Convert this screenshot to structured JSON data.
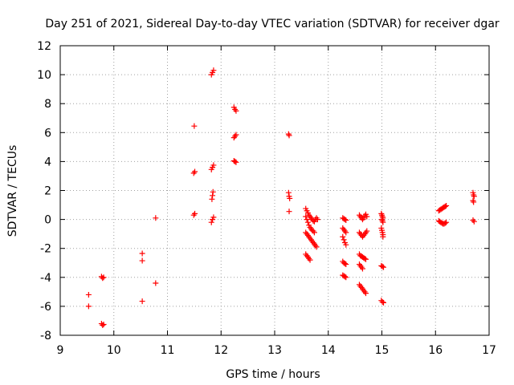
{
  "chart_data": {
    "type": "scatter",
    "title": "Day 251 of 2021, Sidereal Day-to-day VTEC variation (SDTVAR) for receiver dgar",
    "xlabel": "GPS time / hours",
    "ylabel": "SDTVAR / TECUs",
    "xlim": [
      9,
      17
    ],
    "ylim": [
      -8,
      12
    ],
    "xticks": [
      "9",
      "10",
      "11",
      "12",
      "13",
      "14",
      "15",
      "16",
      "17"
    ],
    "yticks": [
      "-8",
      "-6",
      "-4",
      "-2",
      "0",
      "2",
      "4",
      "6",
      "8",
      "10",
      "12"
    ],
    "grid": true,
    "marker": "+",
    "marker_color": "#ff0000",
    "series": [
      {
        "name": "SDTVAR",
        "points": [
          [
            9.53,
            -5.2
          ],
          [
            9.53,
            -6.0
          ],
          [
            9.77,
            -3.95
          ],
          [
            9.79,
            -4.05
          ],
          [
            9.81,
            -4.0
          ],
          [
            9.77,
            -7.2
          ],
          [
            9.79,
            -7.3
          ],
          [
            9.81,
            -7.25
          ],
          [
            10.53,
            -2.35
          ],
          [
            10.53,
            -2.85
          ],
          [
            10.53,
            -5.65
          ],
          [
            10.78,
            0.1
          ],
          [
            10.78,
            -4.4
          ],
          [
            11.5,
            6.45
          ],
          [
            11.49,
            3.2
          ],
          [
            11.51,
            3.3
          ],
          [
            11.49,
            0.3
          ],
          [
            11.51,
            0.4
          ],
          [
            11.82,
            10.0
          ],
          [
            11.84,
            10.15
          ],
          [
            11.86,
            10.3
          ],
          [
            11.82,
            3.45
          ],
          [
            11.84,
            3.6
          ],
          [
            11.86,
            3.75
          ],
          [
            11.83,
            1.4
          ],
          [
            11.84,
            1.65
          ],
          [
            11.85,
            1.9
          ],
          [
            11.82,
            -0.2
          ],
          [
            11.84,
            0.0
          ],
          [
            11.86,
            0.15
          ],
          [
            12.24,
            7.75
          ],
          [
            12.26,
            7.6
          ],
          [
            12.28,
            7.5
          ],
          [
            12.24,
            5.65
          ],
          [
            12.26,
            5.75
          ],
          [
            12.28,
            5.85
          ],
          [
            12.24,
            4.05
          ],
          [
            12.26,
            4.0
          ],
          [
            12.28,
            3.95
          ],
          [
            13.26,
            5.9
          ],
          [
            13.27,
            5.8
          ],
          [
            13.26,
            1.85
          ],
          [
            13.27,
            1.6
          ],
          [
            13.28,
            1.45
          ],
          [
            13.27,
            0.55
          ],
          [
            13.58,
            0.75
          ],
          [
            13.6,
            0.6
          ],
          [
            13.62,
            0.45
          ],
          [
            13.64,
            0.3
          ],
          [
            13.66,
            0.2
          ],
          [
            13.68,
            0.1
          ],
          [
            13.7,
            0.0
          ],
          [
            13.72,
            -0.1
          ],
          [
            13.74,
            -0.15
          ],
          [
            13.76,
            0.0
          ],
          [
            13.78,
            0.1
          ],
          [
            13.8,
            0.0
          ],
          [
            13.58,
            0.2
          ],
          [
            13.6,
            0.0
          ],
          [
            13.62,
            -0.2
          ],
          [
            13.64,
            -0.4
          ],
          [
            13.66,
            -0.55
          ],
          [
            13.68,
            -0.65
          ],
          [
            13.7,
            -0.75
          ],
          [
            13.72,
            -0.8
          ],
          [
            13.74,
            -0.9
          ],
          [
            13.58,
            -0.9
          ],
          [
            13.6,
            -1.0
          ],
          [
            13.62,
            -1.1
          ],
          [
            13.64,
            -1.2
          ],
          [
            13.66,
            -1.3
          ],
          [
            13.68,
            -1.4
          ],
          [
            13.7,
            -1.5
          ],
          [
            13.72,
            -1.6
          ],
          [
            13.74,
            -1.7
          ],
          [
            13.76,
            -1.8
          ],
          [
            13.78,
            -1.9
          ],
          [
            13.58,
            -2.4
          ],
          [
            13.6,
            -2.5
          ],
          [
            13.62,
            -2.6
          ],
          [
            13.64,
            -2.7
          ],
          [
            13.66,
            -2.8
          ],
          [
            14.27,
            0.1
          ],
          [
            14.29,
            0.05
          ],
          [
            14.31,
            0.0
          ],
          [
            14.33,
            -0.05
          ],
          [
            14.27,
            -0.6
          ],
          [
            14.29,
            -0.7
          ],
          [
            14.31,
            -0.8
          ],
          [
            14.33,
            -0.9
          ],
          [
            14.27,
            -1.2
          ],
          [
            14.29,
            -1.4
          ],
          [
            14.31,
            -1.6
          ],
          [
            14.33,
            -1.75
          ],
          [
            14.27,
            -2.9
          ],
          [
            14.29,
            -3.0
          ],
          [
            14.31,
            -3.05
          ],
          [
            14.33,
            -3.1
          ],
          [
            14.27,
            -3.85
          ],
          [
            14.29,
            -3.9
          ],
          [
            14.31,
            -3.95
          ],
          [
            14.33,
            -4.0
          ],
          [
            14.58,
            0.3
          ],
          [
            14.6,
            0.2
          ],
          [
            14.62,
            0.1
          ],
          [
            14.64,
            0.0
          ],
          [
            14.66,
            0.1
          ],
          [
            14.68,
            0.25
          ],
          [
            14.7,
            0.35
          ],
          [
            14.72,
            0.2
          ],
          [
            14.58,
            -0.9
          ],
          [
            14.6,
            -1.0
          ],
          [
            14.62,
            -1.1
          ],
          [
            14.64,
            -1.2
          ],
          [
            14.66,
            -1.1
          ],
          [
            14.68,
            -1.0
          ],
          [
            14.7,
            -0.9
          ],
          [
            14.72,
            -0.8
          ],
          [
            14.58,
            -2.4
          ],
          [
            14.6,
            -2.5
          ],
          [
            14.62,
            -2.55
          ],
          [
            14.64,
            -2.6
          ],
          [
            14.66,
            -2.65
          ],
          [
            14.68,
            -2.7
          ],
          [
            14.7,
            -2.75
          ],
          [
            14.58,
            -3.1
          ],
          [
            14.6,
            -3.2
          ],
          [
            14.62,
            -3.3
          ],
          [
            14.64,
            -3.4
          ],
          [
            14.58,
            -4.5
          ],
          [
            14.6,
            -4.6
          ],
          [
            14.62,
            -4.7
          ],
          [
            14.64,
            -4.8
          ],
          [
            14.66,
            -4.9
          ],
          [
            14.68,
            -5.0
          ],
          [
            14.7,
            -5.1
          ],
          [
            14.99,
            0.4
          ],
          [
            15.0,
            0.3
          ],
          [
            15.01,
            0.2
          ],
          [
            15.02,
            0.1
          ],
          [
            15.0,
            0.0
          ],
          [
            15.01,
            -0.1
          ],
          [
            15.02,
            -0.2
          ],
          [
            14.99,
            -0.6
          ],
          [
            15.0,
            -0.75
          ],
          [
            15.01,
            -0.9
          ],
          [
            15.02,
            -1.05
          ],
          [
            15.02,
            -1.2
          ],
          [
            14.99,
            -3.2
          ],
          [
            15.01,
            -3.25
          ],
          [
            15.03,
            -3.3
          ],
          [
            14.99,
            -5.6
          ],
          [
            15.01,
            -5.7
          ],
          [
            15.03,
            -5.75
          ],
          [
            16.06,
            0.6
          ],
          [
            16.08,
            0.65
          ],
          [
            16.1,
            0.7
          ],
          [
            16.12,
            0.75
          ],
          [
            16.14,
            0.8
          ],
          [
            16.16,
            0.85
          ],
          [
            16.18,
            0.9
          ],
          [
            16.2,
            0.95
          ],
          [
            16.06,
            -0.1
          ],
          [
            16.08,
            -0.15
          ],
          [
            16.1,
            -0.2
          ],
          [
            16.12,
            -0.25
          ],
          [
            16.14,
            -0.3
          ],
          [
            16.16,
            -0.3
          ],
          [
            16.18,
            -0.25
          ],
          [
            16.2,
            -0.2
          ],
          [
            16.7,
            1.85
          ],
          [
            16.71,
            1.7
          ],
          [
            16.72,
            1.6
          ],
          [
            16.7,
            1.3
          ],
          [
            16.71,
            1.2
          ],
          [
            16.7,
            -0.05
          ],
          [
            16.72,
            -0.15
          ]
        ]
      }
    ]
  }
}
